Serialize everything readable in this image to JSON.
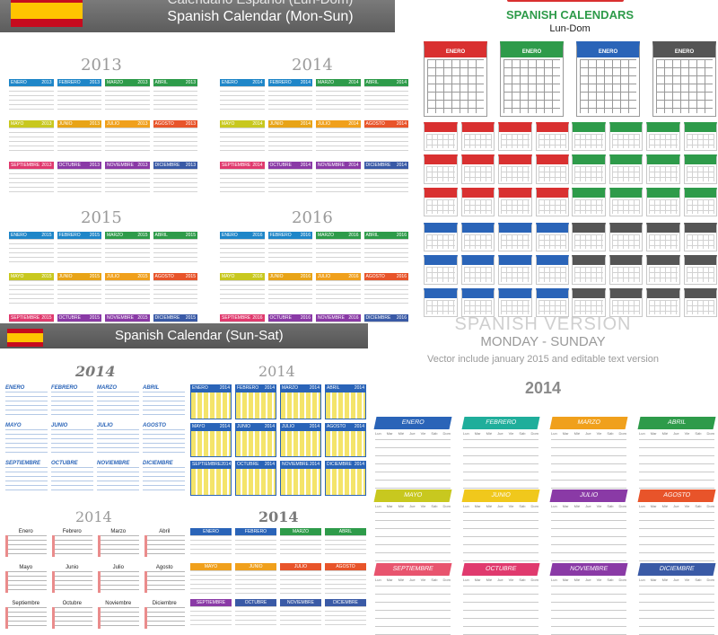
{
  "top_left": {
    "title1": "Calendario Español (Lun-Dom)",
    "title2": "Spanish Calendar (Mon-Sun)",
    "years": [
      "2013",
      "2014",
      "2015",
      "2016"
    ],
    "months": [
      "ENERO",
      "FEBRERO",
      "MARZO",
      "ABRIL",
      "MAYO",
      "JUNIO",
      "JULIO",
      "AGOSTO",
      "SEPTIEMBRE",
      "OCTUBRE",
      "NOVIEMBRE",
      "DICIEMBRE"
    ],
    "colors": [
      "#1f86c8",
      "#1f86c8",
      "#2e9b4a",
      "#2e9b4a",
      "#c8c81f",
      "#e8a417",
      "#f0a01c",
      "#e8542a",
      "#e03a6e",
      "#8a3aa6",
      "#8a3aa6",
      "#3a5aa6"
    ]
  },
  "top_right": {
    "title": "SPANISH CALENDARS",
    "subtitle": "Lun-Dom",
    "month_label": "ENERO",
    "colors": [
      "#d93030",
      "#2e9b4a",
      "#2a64b8",
      "#555555"
    ]
  },
  "bottom_left": {
    "title": "Spanish Calendar (Sun-Sat)",
    "year": "2014",
    "months_caps": [
      "ENERO",
      "FEBRERO",
      "MARZO",
      "ABRIL",
      "MAYO",
      "JUNIO",
      "JULIO",
      "AGOSTO",
      "SEPTIEMBRE",
      "OCTUBRE",
      "NOVIEMBRE",
      "DICIEMBRE"
    ],
    "months_title": [
      "Enero",
      "Febrero",
      "Marzo",
      "Abril",
      "Mayo",
      "Junio",
      "Julio",
      "Agosto",
      "Septiembre",
      "Octubre",
      "Noviembre",
      "Diciembre"
    ],
    "months_italic": [
      "Enero",
      "Febrero",
      "Marzo",
      "Abril",
      "Mayo",
      "Junio",
      "Julio",
      "Agosto",
      "Septiembre",
      "Octubre",
      "Noviembre",
      "Diciembre"
    ],
    "blue": "#2a64b8",
    "red": "#d93030",
    "tile_colors": [
      "#2a64b8",
      "#2a64b8",
      "#2e9b4a",
      "#2e9b4a",
      "#f0a01c",
      "#f0a01c",
      "#e8542a",
      "#e8542a",
      "#8a3aa6",
      "#3a5aa6",
      "#3a5aa6",
      "#3a5aa6"
    ]
  },
  "bottom_right": {
    "heading1": "SPANISH VERSION",
    "heading2": "MONDAY - SUNDAY",
    "heading3": "Vector include january 2015 and editable text version",
    "year": "2014",
    "weekdays": [
      "Lun",
      "Mar",
      "Mié",
      "Jue",
      "Vie",
      "Sáb",
      "Dom"
    ],
    "months": [
      "ENERO",
      "FEBRERO",
      "MARZO",
      "ABRIL",
      "MAYO",
      "JUNIO",
      "JULIO",
      "AGOSTO",
      "SEPTIEMBRE",
      "OCTUBRE",
      "NOVIEMBRE",
      "DICIEMBRE"
    ],
    "colors": [
      "#2a64b8",
      "#1fae9b",
      "#f0a01c",
      "#2e9b4a",
      "#c8c81f",
      "#f0c81c",
      "#8a3aa6",
      "#e8542a",
      "#e8546e",
      "#e03a6e",
      "#8a3aa6",
      "#3a5aa6"
    ]
  }
}
